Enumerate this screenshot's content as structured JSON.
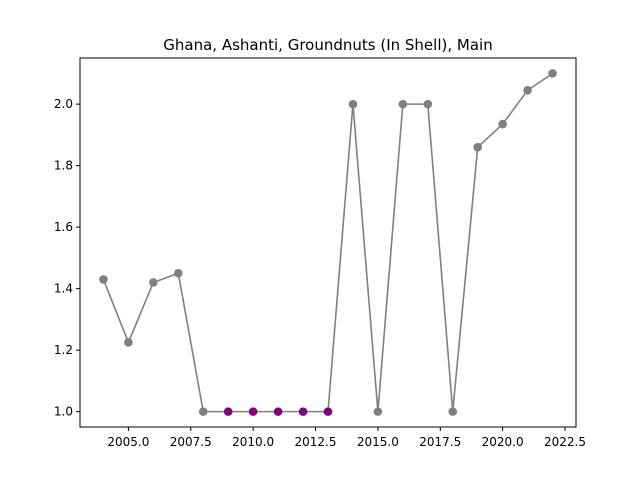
{
  "chart_data": {
    "type": "line",
    "title": "Ghana, Ashanti, Groundnuts (In Shell), Main",
    "xlabel": "",
    "ylabel": "",
    "xlim": [
      2003.06,
      2022.94
    ],
    "ylim": [
      0.95,
      2.15
    ],
    "x_ticks": [
      2005.0,
      2007.5,
      2010.0,
      2012.5,
      2015.0,
      2017.5,
      2020.0,
      2022.5
    ],
    "x_tick_labels": [
      "2005.0",
      "2007.5",
      "2010.0",
      "2012.5",
      "2015.0",
      "2017.5",
      "2020.0",
      "2022.5"
    ],
    "y_ticks": [
      1.0,
      1.2,
      1.4,
      1.6,
      1.8,
      2.0
    ],
    "y_tick_labels": [
      "1.0",
      "1.2",
      "1.4",
      "1.6",
      "1.8",
      "2.0"
    ],
    "grid": false,
    "line_color": "#808080",
    "marker_color": "#808080",
    "highlight_color": "#800080",
    "series": [
      {
        "x": [
          2004,
          2005,
          2006,
          2007,
          2008,
          2009,
          2010,
          2011,
          2012,
          2013,
          2014,
          2015,
          2016,
          2017,
          2018,
          2019,
          2020,
          2021,
          2022
        ],
        "values": [
          1.43,
          1.225,
          1.42,
          1.45,
          1.0,
          1.0,
          1.0,
          1.0,
          1.0,
          1.0,
          2.0,
          1.0,
          2.0,
          2.0,
          1.0,
          1.86,
          1.935,
          2.045,
          2.1
        ],
        "highlighted": [
          false,
          false,
          false,
          false,
          false,
          true,
          true,
          true,
          true,
          true,
          false,
          false,
          false,
          false,
          false,
          false,
          false,
          false,
          false
        ]
      }
    ]
  }
}
